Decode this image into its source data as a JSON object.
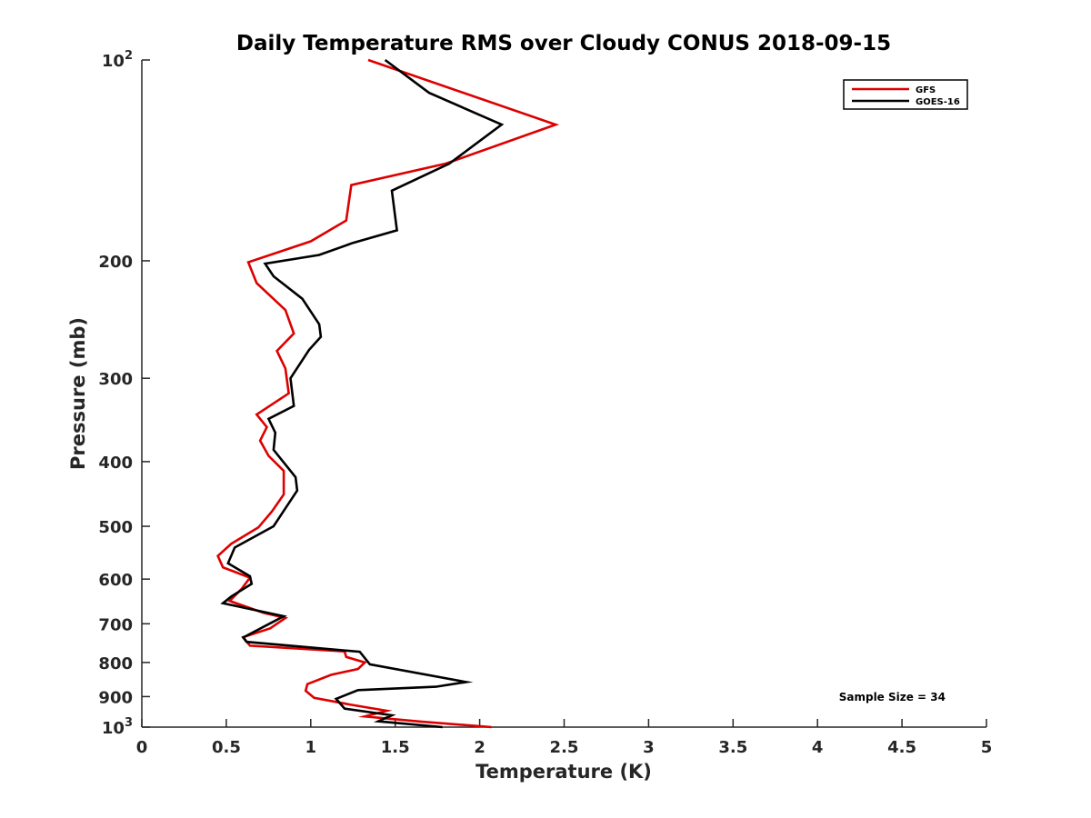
{
  "chart_data": {
    "type": "line",
    "title": "Daily Temperature RMS over Cloudy CONUS 2018-09-15",
    "xlabel": "Temperature (K)",
    "ylabel": "Pressure (mb)",
    "xlim": [
      0,
      5
    ],
    "ylim": [
      100,
      1000
    ],
    "y_scale": "log",
    "y_reversed": true,
    "grid": false,
    "legend_position": "top-right",
    "xticks": [
      0,
      0.5,
      1,
      1.5,
      2,
      2.5,
      3,
      3.5,
      4,
      4.5,
      5
    ],
    "xtick_labels": [
      "0",
      "0.5",
      "1",
      "1.5",
      "2",
      "2.5",
      "3",
      "3.5",
      "4",
      "4.5",
      "5"
    ],
    "yticks": [
      {
        "value": 100,
        "label": "10",
        "sup": "2"
      },
      {
        "value": 200,
        "label": "200",
        "sup": ""
      },
      {
        "value": 300,
        "label": "300",
        "sup": ""
      },
      {
        "value": 400,
        "label": "400",
        "sup": ""
      },
      {
        "value": 500,
        "label": "500",
        "sup": ""
      },
      {
        "value": 600,
        "label": "600",
        "sup": ""
      },
      {
        "value": 700,
        "label": "700",
        "sup": ""
      },
      {
        "value": 800,
        "label": "800",
        "sup": ""
      },
      {
        "value": 900,
        "label": "900",
        "sup": ""
      },
      {
        "value": 1000,
        "label": "10",
        "sup": "3"
      }
    ],
    "annotation": "Sample Size = 34",
    "series": [
      {
        "name": "GFS",
        "color": "#dd0000",
        "points": [
          [
            1.34,
            100
          ],
          [
            2.45,
            125
          ],
          [
            1.8,
            143
          ],
          [
            1.24,
            154
          ],
          [
            1.21,
            174
          ],
          [
            1.0,
            187
          ],
          [
            0.63,
            201
          ],
          [
            0.68,
            216
          ],
          [
            0.85,
            237
          ],
          [
            0.9,
            257
          ],
          [
            0.8,
            273
          ],
          [
            0.85,
            290
          ],
          [
            0.87,
            316
          ],
          [
            0.68,
            340
          ],
          [
            0.74,
            355
          ],
          [
            0.7,
            372
          ],
          [
            0.75,
            392
          ],
          [
            0.84,
            413
          ],
          [
            0.84,
            448
          ],
          [
            0.77,
            475
          ],
          [
            0.69,
            502
          ],
          [
            0.53,
            531
          ],
          [
            0.45,
            554
          ],
          [
            0.48,
            576
          ],
          [
            0.64,
            597
          ],
          [
            0.59,
            621
          ],
          [
            0.52,
            647
          ],
          [
            0.72,
            674
          ],
          [
            0.85,
            686
          ],
          [
            0.76,
            711
          ],
          [
            0.6,
            733
          ],
          [
            0.64,
            755
          ],
          [
            1.2,
            770
          ],
          [
            1.21,
            785
          ],
          [
            1.32,
            800
          ],
          [
            1.28,
            818
          ],
          [
            1.12,
            835
          ],
          [
            0.98,
            862
          ],
          [
            0.97,
            882
          ],
          [
            1.02,
            904
          ],
          [
            1.23,
            925
          ],
          [
            1.45,
            945
          ],
          [
            1.32,
            964
          ],
          [
            1.65,
            981
          ],
          [
            2.07,
            1000
          ]
        ]
      },
      {
        "name": "GOES-16",
        "color": "#000000",
        "points": [
          [
            1.44,
            100
          ],
          [
            1.7,
            112
          ],
          [
            2.13,
            125
          ],
          [
            1.82,
            143
          ],
          [
            1.48,
            157
          ],
          [
            1.51,
            180
          ],
          [
            1.25,
            188
          ],
          [
            1.05,
            196
          ],
          [
            0.73,
            202
          ],
          [
            0.78,
            211
          ],
          [
            0.95,
            228
          ],
          [
            1.05,
            249
          ],
          [
            1.06,
            260
          ],
          [
            0.99,
            272
          ],
          [
            0.88,
            300
          ],
          [
            0.9,
            330
          ],
          [
            0.75,
            345
          ],
          [
            0.79,
            362
          ],
          [
            0.78,
            384
          ],
          [
            0.91,
            422
          ],
          [
            0.92,
            442
          ],
          [
            0.85,
            470
          ],
          [
            0.78,
            500
          ],
          [
            0.55,
            538
          ],
          [
            0.51,
            568
          ],
          [
            0.64,
            594
          ],
          [
            0.65,
            610
          ],
          [
            0.53,
            637
          ],
          [
            0.48,
            652
          ],
          [
            0.84,
            682
          ],
          [
            0.76,
            699
          ],
          [
            0.6,
            734
          ],
          [
            0.62,
            745
          ],
          [
            1.29,
            771
          ],
          [
            1.35,
            805
          ],
          [
            1.92,
            856
          ],
          [
            1.74,
            870
          ],
          [
            1.28,
            880
          ],
          [
            1.15,
            907
          ],
          [
            1.2,
            938
          ],
          [
            1.48,
            960
          ],
          [
            1.4,
            980
          ],
          [
            1.78,
            1000
          ]
        ]
      }
    ]
  }
}
